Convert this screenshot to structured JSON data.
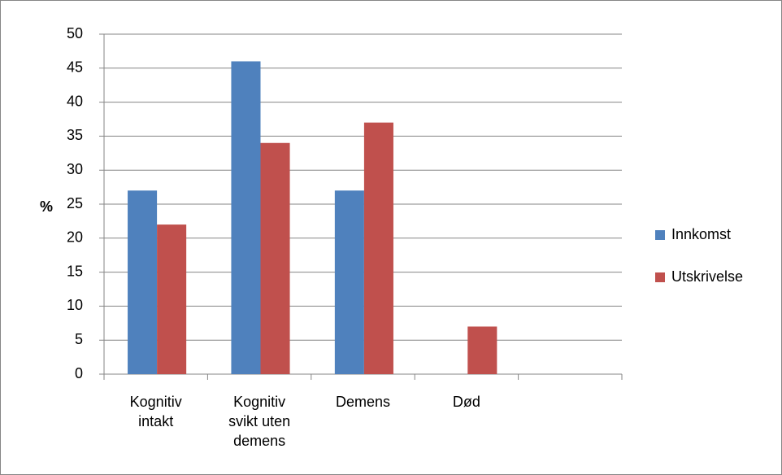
{
  "chart_data": {
    "type": "bar",
    "y_label": "%",
    "categories": [
      "Kognitiv intakt",
      "Kognitiv svikt uten demens",
      "Demens",
      "Død",
      null
    ],
    "series": [
      {
        "name": "Innkomst",
        "color": "#4f81bd",
        "values": [
          27,
          46,
          27,
          0,
          null
        ]
      },
      {
        "name": "Utskrivelse",
        "color": "#c0504d",
        "values": [
          22,
          34,
          37,
          7,
          null
        ]
      }
    ],
    "ylim": [
      0,
      50
    ],
    "yticks": [
      0,
      5,
      10,
      15,
      20,
      25,
      30,
      35,
      40,
      45,
      50
    ],
    "grid": true,
    "legend": "right"
  }
}
